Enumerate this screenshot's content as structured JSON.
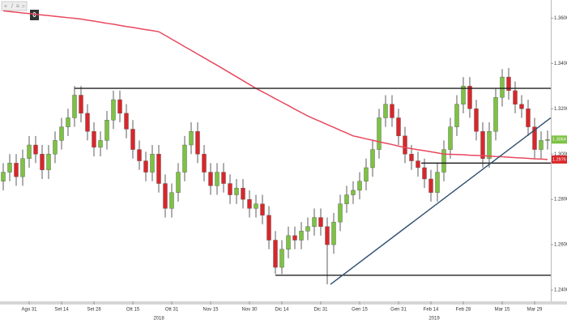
{
  "toolbar": {
    "badge": "0"
  },
  "chart_data": {
    "type": "candlestick",
    "categories": [
      null,
      null,
      null,
      null,
      "Ago 31",
      null,
      null,
      null,
      null,
      "Set 14",
      null,
      null,
      null,
      null,
      "Set 28",
      null,
      null,
      null,
      null,
      null,
      "Ott 15",
      null,
      null,
      null,
      null,
      null,
      "Ott 31",
      null,
      null,
      null,
      null,
      null,
      "Nov 15",
      null,
      null,
      null,
      null,
      null,
      "Nov 30",
      null,
      null,
      null,
      null,
      "Dic 14",
      null,
      null,
      null,
      null,
      null,
      "Dic 31",
      null,
      null,
      null,
      null,
      null,
      "Gen 15",
      null,
      null,
      null,
      null,
      null,
      "Gen 31",
      null,
      null,
      null,
      null,
      "Feb 14",
      null,
      null,
      null,
      null,
      "Feb 28",
      null,
      null,
      null,
      null,
      null,
      "Mar 15",
      null,
      null,
      null,
      null,
      "Mar 29",
      null,
      null
    ],
    "open": [
      1.288,
      1.292,
      1.296,
      1.29,
      1.298,
      1.304,
      1.3,
      1.293,
      1.3,
      1.306,
      1.312,
      1.316,
      1.326,
      1.318,
      1.31,
      1.303,
      1.306,
      1.315,
      1.324,
      1.318,
      1.311,
      1.302,
      1.297,
      1.292,
      1.3,
      1.287,
      1.276,
      1.283,
      1.292,
      1.304,
      1.31,
      1.3,
      1.292,
      1.286,
      1.292,
      1.287,
      1.282,
      1.285,
      1.28,
      1.276,
      1.278,
      1.273,
      1.262,
      1.25,
      1.258,
      1.264,
      1.262,
      1.266,
      1.268,
      1.272,
      1.268,
      1.26,
      1.27,
      1.278,
      1.282,
      1.284,
      1.288,
      1.294,
      1.302,
      1.316,
      1.322,
      1.316,
      1.308,
      1.3,
      1.297,
      1.294,
      1.289,
      1.283,
      1.292,
      1.302,
      1.312,
      1.322,
      1.33,
      1.32,
      1.31,
      1.298,
      1.31,
      1.325,
      1.334,
      1.328,
      1.322,
      1.32,
      1.312,
      1.302,
      1.306
    ],
    "high": [
      1.296,
      1.3,
      1.3,
      1.302,
      1.308,
      1.308,
      1.304,
      1.304,
      1.31,
      1.316,
      1.32,
      1.33,
      1.33,
      1.322,
      1.314,
      1.31,
      1.319,
      1.328,
      1.328,
      1.322,
      1.315,
      1.306,
      1.301,
      1.304,
      1.304,
      1.291,
      1.287,
      1.296,
      1.308,
      1.314,
      1.314,
      1.304,
      1.296,
      1.296,
      1.296,
      1.291,
      1.289,
      1.289,
      1.284,
      1.282,
      1.282,
      1.277,
      1.266,
      1.262,
      1.268,
      1.268,
      1.27,
      1.272,
      1.276,
      1.276,
      1.272,
      1.274,
      1.282,
      1.286,
      1.288,
      1.292,
      1.298,
      1.306,
      1.32,
      1.326,
      1.326,
      1.32,
      1.312,
      1.304,
      1.301,
      1.298,
      1.293,
      1.296,
      1.306,
      1.316,
      1.326,
      1.334,
      1.334,
      1.324,
      1.314,
      1.314,
      1.329,
      1.3375,
      1.338,
      1.332,
      1.326,
      1.324,
      1.316,
      1.31,
      1.3104
    ],
    "low": [
      1.284,
      1.288,
      1.286,
      1.286,
      1.294,
      1.296,
      1.289,
      1.289,
      1.296,
      1.302,
      1.308,
      1.312,
      1.314,
      1.306,
      1.299,
      1.299,
      1.302,
      1.311,
      1.314,
      1.307,
      1.298,
      1.293,
      1.288,
      1.288,
      1.283,
      1.272,
      1.272,
      1.279,
      1.288,
      1.3,
      1.296,
      1.288,
      1.282,
      1.282,
      1.283,
      1.278,
      1.278,
      1.276,
      1.272,
      1.272,
      1.269,
      1.258,
      1.247,
      1.247,
      1.254,
      1.258,
      1.258,
      1.262,
      1.264,
      1.264,
      1.2425,
      1.256,
      1.266,
      1.274,
      1.278,
      1.28,
      1.284,
      1.29,
      1.298,
      1.312,
      1.312,
      1.304,
      1.296,
      1.293,
      1.29,
      1.285,
      1.279,
      1.279,
      1.288,
      1.298,
      1.308,
      1.318,
      1.316,
      1.306,
      1.294,
      1.294,
      1.306,
      1.321,
      1.324,
      1.318,
      1.316,
      1.308,
      1.298,
      1.298,
      1.302
    ],
    "close": [
      1.292,
      1.296,
      1.29,
      1.298,
      1.304,
      1.3,
      1.293,
      1.3,
      1.306,
      1.312,
      1.316,
      1.326,
      1.318,
      1.31,
      1.303,
      1.306,
      1.315,
      1.324,
      1.318,
      1.311,
      1.302,
      1.297,
      1.292,
      1.3,
      1.287,
      1.276,
      1.283,
      1.292,
      1.304,
      1.31,
      1.3,
      1.292,
      1.286,
      1.292,
      1.287,
      1.282,
      1.285,
      1.28,
      1.276,
      1.278,
      1.273,
      1.262,
      1.25,
      1.258,
      1.264,
      1.262,
      1.266,
      1.268,
      1.272,
      1.268,
      1.26,
      1.27,
      1.278,
      1.282,
      1.284,
      1.288,
      1.294,
      1.302,
      1.316,
      1.322,
      1.316,
      1.308,
      1.3,
      1.297,
      1.294,
      1.289,
      1.283,
      1.292,
      1.302,
      1.312,
      1.322,
      1.33,
      1.32,
      1.31,
      1.298,
      1.31,
      1.325,
      1.334,
      1.328,
      1.322,
      1.32,
      1.312,
      1.302,
      1.306,
      1.3064
    ],
    "up_color": "#7dc243",
    "down_color": "#d9262b",
    "moving_average": {
      "color": "#e8485e",
      "values": [
        1.3632,
        1.3629,
        1.3626,
        1.3623,
        1.362,
        1.3617,
        1.3614,
        1.3611,
        1.3608,
        1.3605,
        1.3602,
        1.3599,
        1.3596,
        1.3591,
        1.3587,
        1.3582,
        1.3577,
        1.3573,
        1.3568,
        1.3563,
        1.3559,
        1.3554,
        1.3549,
        1.3545,
        1.354,
        1.3524,
        1.3507,
        1.3491,
        1.3474,
        1.3458,
        1.3441,
        1.3425,
        1.3408,
        1.3392,
        1.3375,
        1.3358,
        1.3341,
        1.3324,
        1.3307,
        1.329,
        1.3275,
        1.326,
        1.3244,
        1.3229,
        1.3214,
        1.3198,
        1.3183,
        1.3168,
        1.3155,
        1.3143,
        1.313,
        1.3118,
        1.3105,
        1.3093,
        1.308,
        1.3074,
        1.3067,
        1.3061,
        1.3054,
        1.3048,
        1.3042,
        1.3035,
        1.3029,
        1.3024,
        1.3019,
        1.3015,
        1.301,
        1.3005,
        1.3,
        1.2999,
        1.2998,
        1.2997,
        1.2995,
        1.2994,
        1.2993,
        1.2991,
        1.2989,
        1.2988,
        1.2986,
        1.2984,
        1.2983,
        1.2981,
        1.2979,
        1.2978,
        1.2976
      ]
    },
    "lines": [
      {
        "color": "#222222",
        "x": [
          11,
          84.5
        ],
        "y": [
          1.329,
          1.329
        ]
      },
      {
        "color": "#222222",
        "x": [
          64.5,
          84.5
        ],
        "y": [
          1.296,
          1.296
        ]
      },
      {
        "color": "#222222",
        "x": [
          42,
          84.5
        ],
        "y": [
          1.2465,
          1.2465
        ]
      },
      {
        "color": "#2f4f6f",
        "x": [
          50.5,
          84.5
        ],
        "y": [
          1.2425,
          1.316
        ]
      }
    ],
    "ylim": [
      1.235,
      1.368
    ],
    "yticks": [
      {
        "value": 1.36,
        "label": "1.3600"
      },
      {
        "value": 1.34,
        "label": "1.3400"
      },
      {
        "value": 1.32,
        "label": "1.3200"
      },
      {
        "value": 1.3,
        "label": "1.3000"
      },
      {
        "value": 1.28,
        "label": "1.2800"
      },
      {
        "value": 1.26,
        "label": "1.2600"
      },
      {
        "value": 1.24,
        "label": "1.2400"
      }
    ],
    "year_labels": [
      {
        "label": "2018",
        "x": 24
      },
      {
        "label": "2019",
        "x": 66.5
      }
    ]
  }
}
